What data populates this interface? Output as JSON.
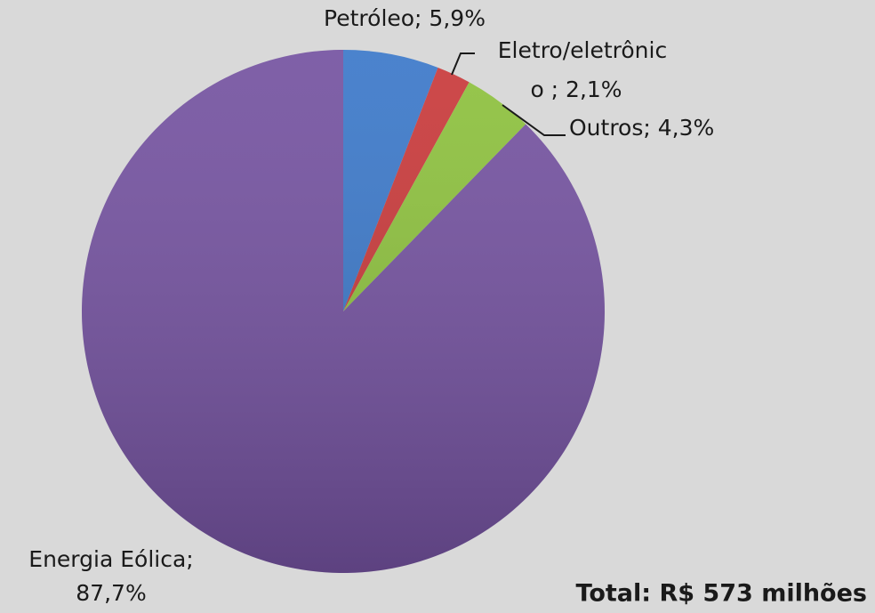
{
  "chart_data": {
    "type": "pie",
    "values": [
      5.9,
      2.1,
      4.3,
      87.7
    ],
    "value_labels": [
      [
        "Petróleo; 5,9%"
      ],
      [
        "Eletro/eletrônic",
        "o ; 2,1%"
      ],
      [
        "Outros; 4,3%"
      ],
      [
        "Energia Eólica;",
        "87,7%"
      ]
    ],
    "colors": [
      "#3b78c9",
      "#c9393a",
      "#8dc13d",
      "#7452a0"
    ],
    "annotation": "Total:  R$ 573 milhões"
  }
}
